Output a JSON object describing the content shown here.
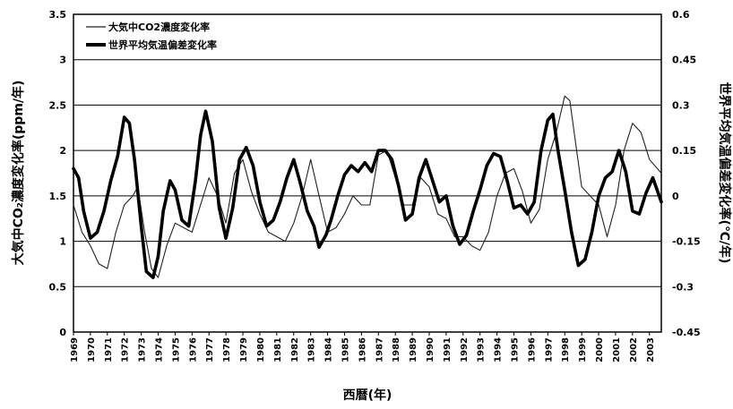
{
  "chart_data": {
    "type": "line",
    "title": "",
    "xlabel": "西暦(年)",
    "ylabel_left": "大気中CO₂濃度変化率(ppm/年)",
    "ylabel_right": "世界平均気温偏差変化率(℃/年)",
    "xlim": [
      1969,
      2003.7
    ],
    "ylim_left": [
      0,
      3.5
    ],
    "ylim_right": [
      -0.45,
      0.6
    ],
    "x_tick_labels": [
      "1969",
      "1970",
      "1971",
      "1972",
      "1973",
      "1974",
      "1975",
      "1976",
      "1977",
      "1978",
      "1979",
      "1980",
      "1981",
      "1982",
      "1983",
      "1984",
      "1985",
      "1986",
      "1987",
      "1988",
      "1989",
      "1990",
      "1991",
      "1992",
      "1993",
      "1994",
      "1995",
      "1996",
      "1997",
      "1998",
      "1999",
      "2000",
      "2001",
      "2002",
      "2003"
    ],
    "y_left_ticks": [
      "0",
      "0.5",
      "1",
      "1.5",
      "2",
      "2.5",
      "3",
      "3.5"
    ],
    "y_right_ticks": [
      "-0.45",
      "-0.3",
      "-0.15",
      "0",
      "0.15",
      "0.3",
      "0.45",
      "0.6"
    ],
    "grid": "horizontal",
    "legend_position": "top-left",
    "series": [
      {
        "name": "大気中CO2濃度変化率",
        "axis": "left",
        "style": "thin",
        "color": "#222222",
        "x": [
          1969.0,
          1969.5,
          1970.0,
          1970.5,
          1971.0,
          1971.5,
          1972.0,
          1972.5,
          1972.8,
          1973.2,
          1973.6,
          1974.0,
          1974.5,
          1975.0,
          1975.5,
          1976.0,
          1976.5,
          1977.0,
          1977.5,
          1978.0,
          1978.5,
          1979.0,
          1979.5,
          1980.0,
          1980.5,
          1981.0,
          1981.5,
          1982.0,
          1982.5,
          1983.0,
          1983.5,
          1984.0,
          1984.5,
          1985.0,
          1985.5,
          1986.0,
          1986.5,
          1987.0,
          1987.5,
          1988.0,
          1988.5,
          1989.0,
          1989.5,
          1990.0,
          1990.5,
          1991.0,
          1991.5,
          1992.0,
          1992.5,
          1993.0,
          1993.5,
          1994.0,
          1994.5,
          1995.0,
          1995.5,
          1996.0,
          1996.5,
          1997.0,
          1997.5,
          1998.0,
          1998.3,
          1998.7,
          1999.0,
          1999.5,
          2000.0,
          2000.5,
          2001.0,
          2001.5,
          2002.0,
          2002.5,
          2003.0,
          2003.7
        ],
        "y": [
          1.4,
          1.1,
          0.95,
          0.75,
          0.7,
          1.1,
          1.4,
          1.5,
          1.6,
          1.1,
          0.7,
          0.6,
          0.95,
          1.2,
          1.15,
          1.1,
          1.4,
          1.7,
          1.5,
          1.2,
          1.75,
          1.9,
          1.55,
          1.3,
          1.1,
          1.05,
          1.0,
          1.2,
          1.5,
          1.9,
          1.5,
          1.1,
          1.15,
          1.3,
          1.5,
          1.4,
          1.4,
          1.95,
          2.0,
          1.7,
          1.4,
          1.4,
          1.7,
          1.6,
          1.3,
          1.25,
          1.05,
          1.05,
          0.95,
          0.9,
          1.1,
          1.5,
          1.75,
          1.8,
          1.55,
          1.2,
          1.35,
          1.9,
          2.2,
          2.6,
          2.55,
          2.0,
          1.6,
          1.5,
          1.4,
          1.05,
          1.4,
          2.0,
          2.3,
          2.2,
          1.9,
          1.75
        ]
      },
      {
        "name": "世界平均気温偏差変化率",
        "axis": "right",
        "style": "thick",
        "color": "#000000",
        "x": [
          1969.0,
          1969.3,
          1969.6,
          1970.0,
          1970.4,
          1970.8,
          1971.2,
          1971.6,
          1972.0,
          1972.3,
          1972.6,
          1973.0,
          1973.3,
          1973.7,
          1974.0,
          1974.3,
          1974.7,
          1975.0,
          1975.4,
          1975.8,
          1976.2,
          1976.5,
          1976.8,
          1977.2,
          1977.6,
          1978.0,
          1978.4,
          1978.8,
          1979.2,
          1979.6,
          1980.0,
          1980.4,
          1980.8,
          1981.2,
          1981.6,
          1982.0,
          1982.4,
          1982.8,
          1983.2,
          1983.5,
          1983.9,
          1984.2,
          1984.6,
          1985.0,
          1985.4,
          1985.8,
          1986.2,
          1986.6,
          1987.0,
          1987.4,
          1987.8,
          1988.2,
          1988.6,
          1989.0,
          1989.4,
          1989.8,
          1990.2,
          1990.6,
          1991.0,
          1991.4,
          1991.8,
          1992.2,
          1992.6,
          1993.0,
          1993.4,
          1993.8,
          1994.2,
          1994.6,
          1995.0,
          1995.4,
          1995.8,
          1996.2,
          1996.6,
          1997.0,
          1997.3,
          1997.6,
          1998.0,
          1998.4,
          1998.8,
          1999.2,
          1999.6,
          2000.0,
          2000.4,
          2000.8,
          2001.2,
          2001.6,
          2002.0,
          2002.4,
          2002.8,
          2003.2,
          2003.7
        ],
        "y": [
          0.09,
          0.06,
          -0.05,
          -0.14,
          -0.12,
          -0.05,
          0.05,
          0.13,
          0.26,
          0.24,
          0.12,
          -0.1,
          -0.25,
          -0.27,
          -0.2,
          -0.05,
          0.05,
          0.02,
          -0.08,
          -0.1,
          0.05,
          0.2,
          0.28,
          0.18,
          -0.04,
          -0.14,
          -0.04,
          0.12,
          0.16,
          0.1,
          -0.02,
          -0.1,
          -0.08,
          -0.02,
          0.06,
          0.12,
          0.04,
          -0.05,
          -0.1,
          -0.17,
          -0.13,
          -0.08,
          0.0,
          0.07,
          0.1,
          0.08,
          0.11,
          0.08,
          0.15,
          0.15,
          0.12,
          0.03,
          -0.08,
          -0.06,
          0.06,
          0.12,
          0.05,
          -0.02,
          0.0,
          -0.1,
          -0.16,
          -0.13,
          -0.05,
          0.02,
          0.1,
          0.14,
          0.13,
          0.05,
          -0.04,
          -0.03,
          -0.06,
          -0.02,
          0.15,
          0.25,
          0.27,
          0.15,
          0.02,
          -0.12,
          -0.23,
          -0.21,
          -0.12,
          0.0,
          0.06,
          0.08,
          0.15,
          0.08,
          -0.05,
          -0.06,
          0.01,
          0.06,
          -0.02
        ]
      }
    ]
  }
}
